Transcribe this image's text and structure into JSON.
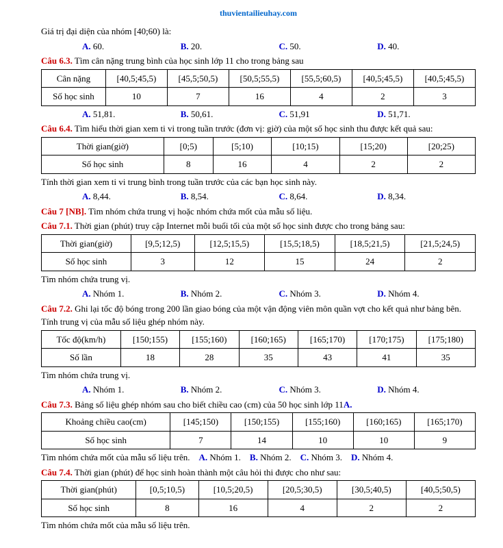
{
  "header": {
    "link": "thuvientailieuhay.com"
  },
  "intro": "Giá trị đại diện của nhóm [40;60) là:",
  "intro_opts": {
    "a": "60.",
    "b": "20.",
    "c": "50.",
    "d": "40."
  },
  "q63": {
    "label": "Câu 6.3.",
    "text": "Tìm cân nặng trung bình của học sinh lớp 11 cho trong bảng sau",
    "row1_h": "Cân nặng",
    "row1": [
      "[40,5;45,5)",
      "[45,5;50,5)",
      "[50,5;55,5)",
      "[55,5;60,5)",
      "[40,5;45,5)",
      "[40,5;45,5)"
    ],
    "row2_h": "Số học sinh",
    "row2": [
      "10",
      "7",
      "16",
      "4",
      "2",
      "3"
    ],
    "opts": {
      "a": "51,81.",
      "b": "50,61.",
      "c": "51,91",
      "d": "51,71."
    }
  },
  "q64": {
    "label": "Câu 6.4.",
    "text": "Tìm hiểu thời gian xem ti vi trong tuần trước (đơn vị: giờ) của một số học sinh thu được kết quả sau:",
    "row1_h": "Thời gian(giờ)",
    "row1": [
      "[0;5)",
      "[5;10)",
      "[10;15)",
      "[15;20)",
      "[20;25)"
    ],
    "row2_h": "Số học sinh",
    "row2": [
      "8",
      "16",
      "4",
      "2",
      "2"
    ],
    "after": "Tính thời gian xem ti vi trung bình trong tuần trước của các bạn học sinh này.",
    "opts": {
      "a": "8,44.",
      "b": "8,54.",
      "c": "8,64.",
      "d": "8,34."
    }
  },
  "q7": {
    "label": "Câu 7 [NB].",
    "text": "Tìm nhóm chứa trung vị hoặc nhóm chứa mốt của mẫu số liệu."
  },
  "q71": {
    "label": "Câu 7.1.",
    "text": "Thời gian (phút) truy cập Internet mỗi buổi tối của một số học sinh được cho trong bảng sau:",
    "row1_h": "Thời gian(giờ)",
    "row1": [
      "[9,5;12,5)",
      "[12,5;15,5)",
      "[15,5;18,5)",
      "[18,5;21,5)",
      "[21,5;24,5)"
    ],
    "row2_h": "Số học sinh",
    "row2": [
      "3",
      "12",
      "15",
      "24",
      "2"
    ],
    "after": "Tìm nhóm chứa trung vị.",
    "opts": {
      "a": "Nhóm 1.",
      "b": "Nhóm 2.",
      "c": "Nhóm 3.",
      "d": "Nhóm 4."
    }
  },
  "q72": {
    "label": "Câu 7.2.",
    "text": "Ghi lại tốc độ bóng trong 200 lần giao bóng của một vận động viên môn quần vợt cho kết quả như bảng bên. Tính trung vị của mẫu số liệu ghép nhóm này.",
    "row1_h": "Tốc độ(km/h)",
    "row1": [
      "[150;155)",
      "[155;160)",
      "[160;165)",
      "[165;170)",
      "[170;175)",
      "[175;180)"
    ],
    "row2_h": "Số lần",
    "row2": [
      "18",
      "28",
      "35",
      "43",
      "41",
      "35"
    ],
    "after": "Tìm nhóm chứa trung vị.",
    "opts": {
      "a": "Nhóm 1.",
      "b": "Nhóm 2.",
      "c": "Nhóm 3.",
      "d": "Nhóm 4."
    }
  },
  "q73": {
    "label": "Câu 7.3.",
    "text": "Bảng số liệu ghép nhóm sau cho biết chiều cao (cm) của 50 học sinh lớp 11",
    "text_suffix": "A.",
    "row1_h": "Khoảng chiều cao(cm)",
    "row1": [
      "[145;150)",
      "[150;155)",
      "[155;160)",
      "[160;165)",
      "[165;170)"
    ],
    "row2_h": "Số học sinh",
    "row2": [
      "7",
      "14",
      "10",
      "10",
      "9"
    ],
    "after": "Tìm nhóm chứa mốt của mẫu số liệu trên.",
    "opts": {
      "a": "Nhóm 1.",
      "b": "Nhóm 2.",
      "c": "Nhóm 3.",
      "d": "Nhóm 4."
    }
  },
  "q74": {
    "label": "Câu 7.4.",
    "text": "Thời gian (phút) để học sinh hoàn thành một câu hỏi thi được cho như sau:",
    "row1_h": "Thời gian(phút)",
    "row1": [
      "[0,5;10,5)",
      "[10,5;20,5)",
      "[20,5;30,5)",
      "[30,5;40,5)",
      "[40,5;50,5)"
    ],
    "row2_h": "Số học sinh",
    "row2": [
      "8",
      "16",
      "4",
      "2",
      "2"
    ],
    "after": "Tìm nhóm chứa mốt của mẫu số liệu trên."
  }
}
